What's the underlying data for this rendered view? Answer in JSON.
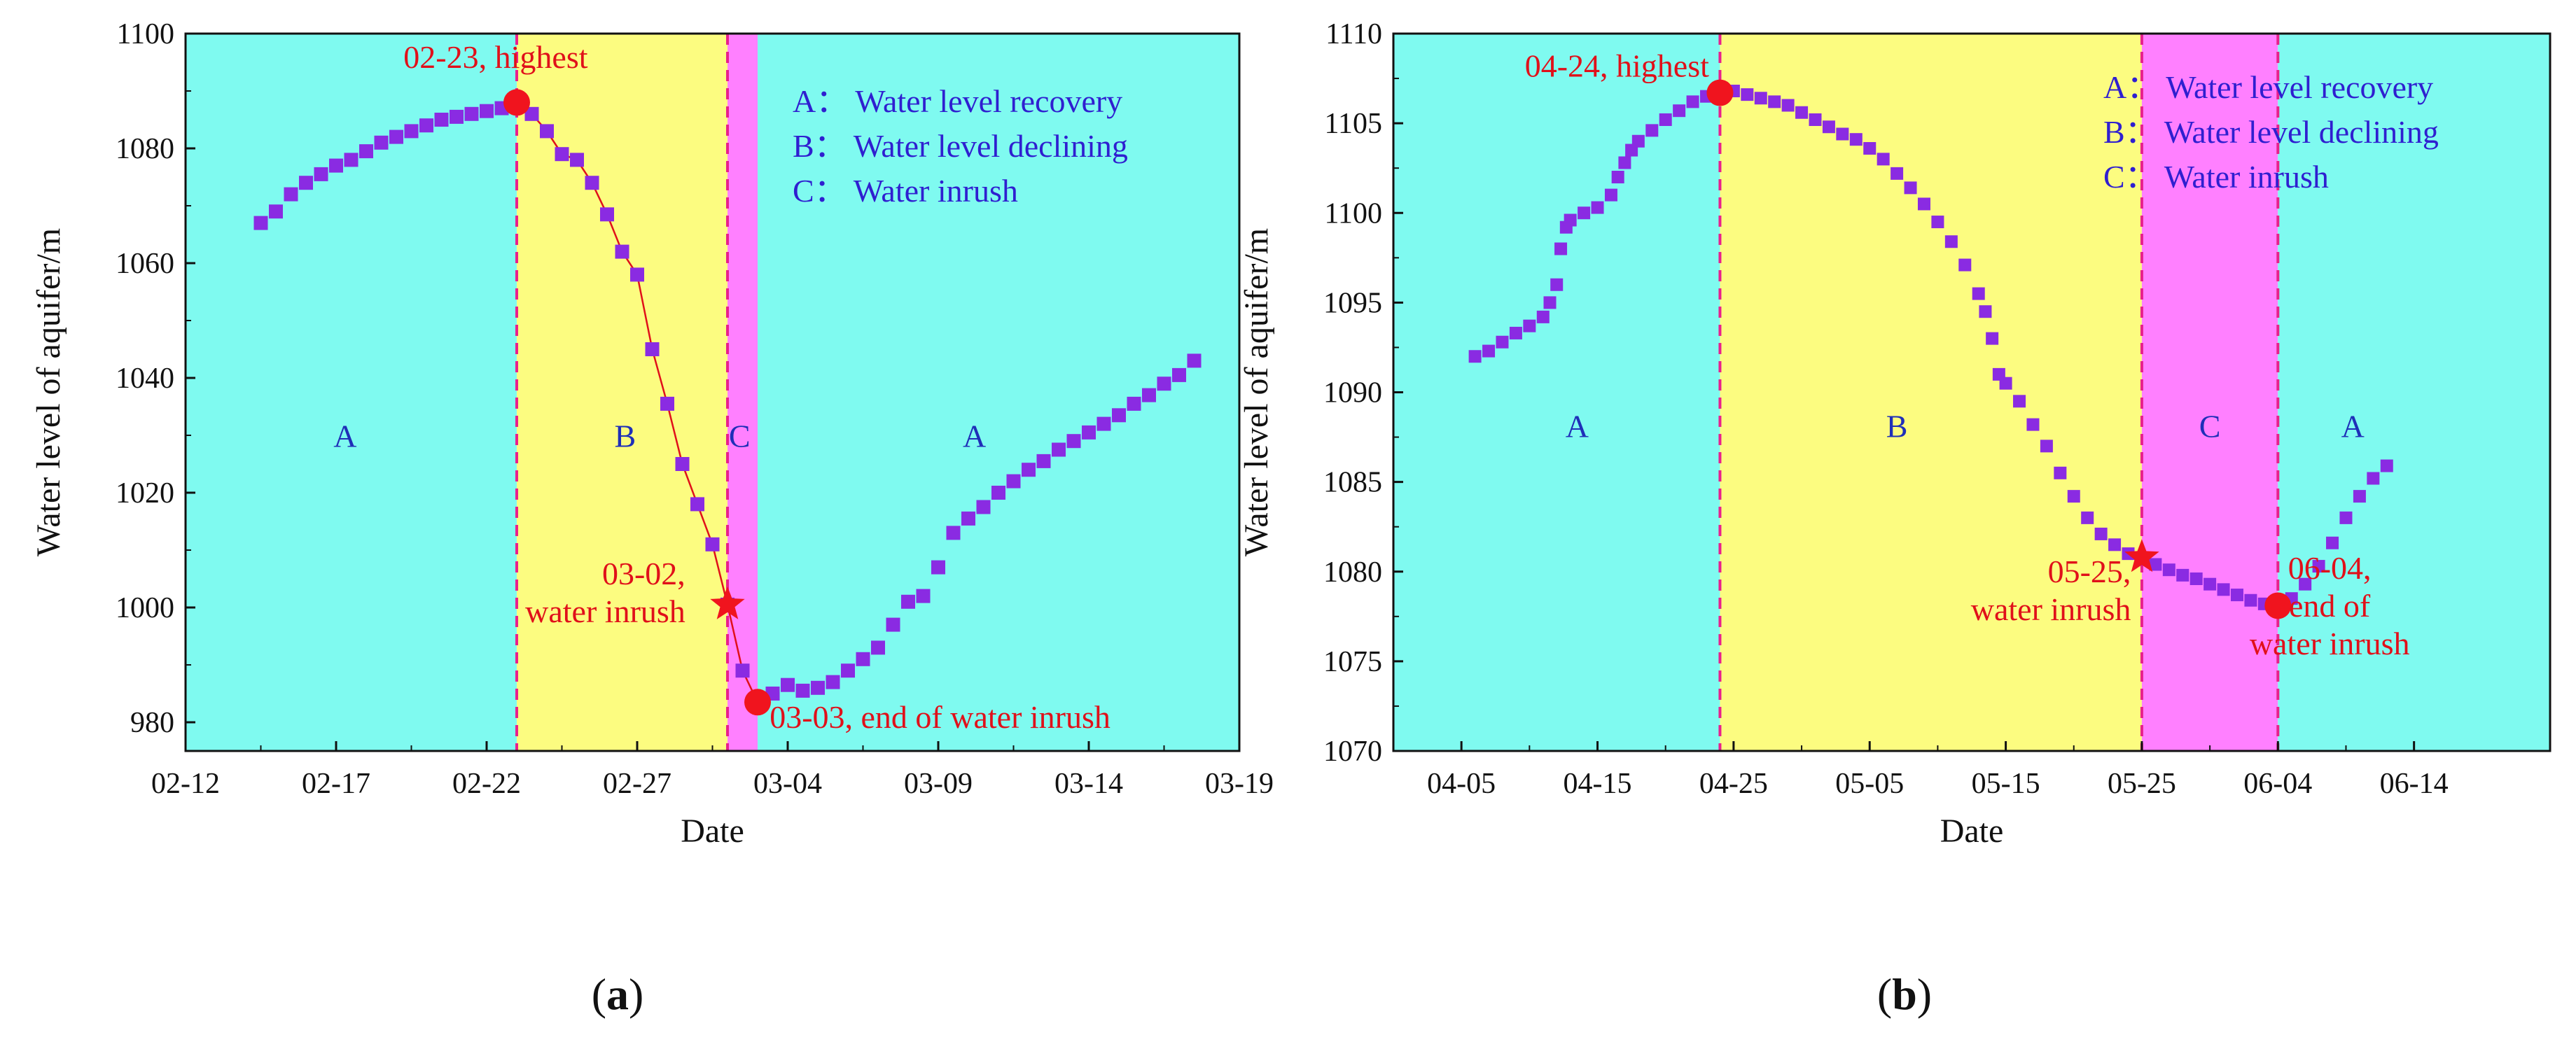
{
  "chart_data": [
    {
      "type": "scatter",
      "panel_label": {
        "open": "(",
        "letter": "a",
        "close": ")"
      },
      "xlabel": "Date",
      "ylabel": "Water level of aquifer/m",
      "xlim": [
        0,
        35
      ],
      "ylim": [
        975,
        1100
      ],
      "x_ticks": [
        {
          "pos": 0,
          "label": "02-12"
        },
        {
          "pos": 5,
          "label": "02-17"
        },
        {
          "pos": 10,
          "label": "02-22"
        },
        {
          "pos": 15,
          "label": "02-27"
        },
        {
          "pos": 20,
          "label": "03-04"
        },
        {
          "pos": 25,
          "label": "03-09"
        },
        {
          "pos": 30,
          "label": "03-14"
        },
        {
          "pos": 35,
          "label": "03-19"
        }
      ],
      "y_ticks": [
        {
          "pos": 980,
          "label": "980"
        },
        {
          "pos": 1000,
          "label": "1000"
        },
        {
          "pos": 1020,
          "label": "1020"
        },
        {
          "pos": 1040,
          "label": "1040"
        },
        {
          "pos": 1060,
          "label": "1060"
        },
        {
          "pos": 1080,
          "label": "1080"
        },
        {
          "pos": 1100,
          "label": "1100"
        }
      ],
      "regions": [
        {
          "label": "A",
          "from": 0,
          "to": 11,
          "color": "#7ffaf0",
          "label_x": 5.3,
          "label_y": 1028
        },
        {
          "label": "B",
          "from": 11,
          "to": 18,
          "color": "#fcfc80",
          "label_x": 14.6,
          "label_y": 1028
        },
        {
          "label": "C",
          "from": 18,
          "to": 19,
          "color": "#ff80ff",
          "label_x": 18.4,
          "label_y": 1028
        },
        {
          "label": "A",
          "from": 19,
          "to": 35,
          "color": "#7ffaf0",
          "label_x": 26.2,
          "label_y": 1028
        }
      ],
      "vlines": [
        11,
        18
      ],
      "legend": [
        {
          "key": "A：",
          "text": "Water level recovery"
        },
        {
          "key": "B：",
          "text": "Water level declining"
        },
        {
          "key": "C：",
          "text": "Water inrush"
        }
      ],
      "series_color": "#8a2be2",
      "line_color": "#e0101a",
      "series": [
        {
          "x": 2.5,
          "y": 1067
        },
        {
          "x": 3.0,
          "y": 1069
        },
        {
          "x": 3.5,
          "y": 1072
        },
        {
          "x": 4.0,
          "y": 1074
        },
        {
          "x": 4.5,
          "y": 1075.5
        },
        {
          "x": 5.0,
          "y": 1077
        },
        {
          "x": 5.5,
          "y": 1078
        },
        {
          "x": 6.0,
          "y": 1079.5
        },
        {
          "x": 6.5,
          "y": 1081
        },
        {
          "x": 7.0,
          "y": 1082
        },
        {
          "x": 7.5,
          "y": 1083
        },
        {
          "x": 8.0,
          "y": 1084
        },
        {
          "x": 8.5,
          "y": 1085
        },
        {
          "x": 9.0,
          "y": 1085.5
        },
        {
          "x": 9.5,
          "y": 1086
        },
        {
          "x": 10.0,
          "y": 1086.5
        },
        {
          "x": 10.5,
          "y": 1087
        },
        {
          "x": 11.0,
          "y": 1087.5
        },
        {
          "x": 11.5,
          "y": 1086
        },
        {
          "x": 12.0,
          "y": 1083
        },
        {
          "x": 12.5,
          "y": 1079
        },
        {
          "x": 13.0,
          "y": 1078
        },
        {
          "x": 13.5,
          "y": 1074
        },
        {
          "x": 14.0,
          "y": 1068.5
        },
        {
          "x": 14.5,
          "y": 1062
        },
        {
          "x": 15.0,
          "y": 1058
        },
        {
          "x": 15.5,
          "y": 1045
        },
        {
          "x": 16.0,
          "y": 1035.5
        },
        {
          "x": 16.5,
          "y": 1025
        },
        {
          "x": 17.0,
          "y": 1018
        },
        {
          "x": 17.5,
          "y": 1011
        },
        {
          "x": 18.0,
          "y": 1000.5
        },
        {
          "x": 18.5,
          "y": 989
        },
        {
          "x": 19.0,
          "y": 983.5
        },
        {
          "x": 19.5,
          "y": 985
        },
        {
          "x": 20.0,
          "y": 986.5
        },
        {
          "x": 20.5,
          "y": 985.5
        },
        {
          "x": 21.0,
          "y": 986
        },
        {
          "x": 21.5,
          "y": 987
        },
        {
          "x": 22.0,
          "y": 989
        },
        {
          "x": 22.5,
          "y": 991
        },
        {
          "x": 23.0,
          "y": 993
        },
        {
          "x": 23.5,
          "y": 997
        },
        {
          "x": 24.0,
          "y": 1001
        },
        {
          "x": 24.5,
          "y": 1002
        },
        {
          "x": 25.0,
          "y": 1007
        },
        {
          "x": 25.5,
          "y": 1013
        },
        {
          "x": 26.0,
          "y": 1015.5
        },
        {
          "x": 26.5,
          "y": 1017.5
        },
        {
          "x": 27.0,
          "y": 1020
        },
        {
          "x": 27.5,
          "y": 1022
        },
        {
          "x": 28.0,
          "y": 1024
        },
        {
          "x": 28.5,
          "y": 1025.5
        },
        {
          "x": 29.0,
          "y": 1027.5
        },
        {
          "x": 29.5,
          "y": 1029
        },
        {
          "x": 30.0,
          "y": 1030.5
        },
        {
          "x": 30.5,
          "y": 1032
        },
        {
          "x": 31.0,
          "y": 1033.5
        },
        {
          "x": 31.5,
          "y": 1035.5
        },
        {
          "x": 32.0,
          "y": 1037
        },
        {
          "x": 32.5,
          "y": 1039
        },
        {
          "x": 33.0,
          "y": 1040.5
        },
        {
          "x": 33.5,
          "y": 1043
        }
      ],
      "line_range": [
        11,
        19
      ],
      "markers": [
        {
          "shape": "circle",
          "x": 11.0,
          "y": 1088,
          "label": [
            "02-23, highest"
          ],
          "label_x": 10.3,
          "label_y": 1094,
          "anchor": "middle"
        },
        {
          "shape": "star",
          "x": 18.0,
          "y": 1000.5,
          "label": [
            "03-02,",
            "water inrush"
          ],
          "label_x": 16.6,
          "label_y": 1004,
          "anchor": "end"
        },
        {
          "shape": "circle",
          "x": 19.0,
          "y": 983.5,
          "label": [
            "03-03, end of water inrush"
          ],
          "label_x": 19.4,
          "label_y": 979,
          "anchor": "start"
        }
      ]
    },
    {
      "type": "scatter",
      "panel_label": {
        "open": "(",
        "letter": "b",
        "close": ")"
      },
      "xlabel": "Date",
      "ylabel": "Water level of aquifer/m",
      "xlim": [
        -10,
        75
      ],
      "ylim": [
        1070,
        1110
      ],
      "x_ticks": [
        {
          "pos": -5,
          "label": "04-05"
        },
        {
          "pos": 5,
          "label": "04-15"
        },
        {
          "pos": 15,
          "label": "04-25"
        },
        {
          "pos": 25,
          "label": "05-05"
        },
        {
          "pos": 35,
          "label": "05-15"
        },
        {
          "pos": 45,
          "label": "05-25"
        },
        {
          "pos": 55,
          "label": "06-04"
        },
        {
          "pos": 65,
          "label": "06-14"
        }
      ],
      "y_ticks": [
        {
          "pos": 1070,
          "label": "1070"
        },
        {
          "pos": 1075,
          "label": "1075"
        },
        {
          "pos": 1080,
          "label": "1080"
        },
        {
          "pos": 1085,
          "label": "1085"
        },
        {
          "pos": 1090,
          "label": "1090"
        },
        {
          "pos": 1095,
          "label": "1095"
        },
        {
          "pos": 1100,
          "label": "1100"
        },
        {
          "pos": 1105,
          "label": "1105"
        },
        {
          "pos": 1110,
          "label": "1110"
        }
      ],
      "regions": [
        {
          "label": "A",
          "from": -10,
          "to": 14,
          "color": "#7ffaf0",
          "label_x": 3.5,
          "label_y": 1087.5
        },
        {
          "label": "B",
          "from": 14,
          "to": 45,
          "color": "#fcfc80",
          "label_x": 27,
          "label_y": 1087.5
        },
        {
          "label": "C",
          "from": 45,
          "to": 55,
          "color": "#ff80ff",
          "label_x": 50,
          "label_y": 1087.5
        },
        {
          "label": "A",
          "from": 55,
          "to": 75,
          "color": "#7ffaf0",
          "label_x": 60.5,
          "label_y": 1087.5
        }
      ],
      "vlines": [
        14,
        45,
        55
      ],
      "legend": [
        {
          "key": "A：",
          "text": "Water level recovery"
        },
        {
          "key": "B：",
          "text": "Water level declining"
        },
        {
          "key": "C：",
          "text": "Water inrush"
        }
      ],
      "series_color": "#8a2be2",
      "line_color": "#e0101a",
      "series": [
        {
          "x": -4.0,
          "y": 1092
        },
        {
          "x": -3.0,
          "y": 1092.3
        },
        {
          "x": -2.0,
          "y": 1092.8
        },
        {
          "x": -1.0,
          "y": 1093.3
        },
        {
          "x": 0.0,
          "y": 1093.7
        },
        {
          "x": 1.0,
          "y": 1094.2
        },
        {
          "x": 1.5,
          "y": 1095
        },
        {
          "x": 2.0,
          "y": 1096
        },
        {
          "x": 2.3,
          "y": 1098
        },
        {
          "x": 2.7,
          "y": 1099.2
        },
        {
          "x": 3.0,
          "y": 1099.6
        },
        {
          "x": 4.0,
          "y": 1100
        },
        {
          "x": 5.0,
          "y": 1100.3
        },
        {
          "x": 6.0,
          "y": 1101
        },
        {
          "x": 6.5,
          "y": 1102
        },
        {
          "x": 7.0,
          "y": 1102.8
        },
        {
          "x": 7.5,
          "y": 1103.5
        },
        {
          "x": 8.0,
          "y": 1104
        },
        {
          "x": 9.0,
          "y": 1104.6
        },
        {
          "x": 10.0,
          "y": 1105.2
        },
        {
          "x": 11.0,
          "y": 1105.7
        },
        {
          "x": 12.0,
          "y": 1106.2
        },
        {
          "x": 13.0,
          "y": 1106.5
        },
        {
          "x": 14.0,
          "y": 1106.7
        },
        {
          "x": 15.0,
          "y": 1106.8
        },
        {
          "x": 16.0,
          "y": 1106.6
        },
        {
          "x": 17.0,
          "y": 1106.4
        },
        {
          "x": 18.0,
          "y": 1106.2
        },
        {
          "x": 19.0,
          "y": 1106
        },
        {
          "x": 20.0,
          "y": 1105.6
        },
        {
          "x": 21.0,
          "y": 1105.2
        },
        {
          "x": 22.0,
          "y": 1104.8
        },
        {
          "x": 23.0,
          "y": 1104.4
        },
        {
          "x": 24.0,
          "y": 1104.1
        },
        {
          "x": 25.0,
          "y": 1103.6
        },
        {
          "x": 26.0,
          "y": 1103
        },
        {
          "x": 27.0,
          "y": 1102.2
        },
        {
          "x": 28.0,
          "y": 1101.4
        },
        {
          "x": 29.0,
          "y": 1100.5
        },
        {
          "x": 30.0,
          "y": 1099.5
        },
        {
          "x": 31.0,
          "y": 1098.4
        },
        {
          "x": 32.0,
          "y": 1097.1
        },
        {
          "x": 33.0,
          "y": 1095.5
        },
        {
          "x": 33.5,
          "y": 1094.5
        },
        {
          "x": 34.0,
          "y": 1093
        },
        {
          "x": 34.5,
          "y": 1091
        },
        {
          "x": 35.0,
          "y": 1090.5
        },
        {
          "x": 36.0,
          "y": 1089.5
        },
        {
          "x": 37.0,
          "y": 1088.2
        },
        {
          "x": 38.0,
          "y": 1087
        },
        {
          "x": 39.0,
          "y": 1085.5
        },
        {
          "x": 40.0,
          "y": 1084.2
        },
        {
          "x": 41.0,
          "y": 1083
        },
        {
          "x": 42.0,
          "y": 1082.1
        },
        {
          "x": 43.0,
          "y": 1081.5
        },
        {
          "x": 44.0,
          "y": 1081
        },
        {
          "x": 45.0,
          "y": 1080.7
        },
        {
          "x": 46.0,
          "y": 1080.4
        },
        {
          "x": 47.0,
          "y": 1080.1
        },
        {
          "x": 48.0,
          "y": 1079.8
        },
        {
          "x": 49.0,
          "y": 1079.6
        },
        {
          "x": 50.0,
          "y": 1079.3
        },
        {
          "x": 51.0,
          "y": 1079
        },
        {
          "x": 52.0,
          "y": 1078.7
        },
        {
          "x": 53.0,
          "y": 1078.4
        },
        {
          "x": 54.0,
          "y": 1078.2
        },
        {
          "x": 55.0,
          "y": 1078.1
        },
        {
          "x": 56.0,
          "y": 1078.5
        },
        {
          "x": 57.0,
          "y": 1079.3
        },
        {
          "x": 58.0,
          "y": 1080.3
        },
        {
          "x": 59.0,
          "y": 1081.6
        },
        {
          "x": 60.0,
          "y": 1083
        },
        {
          "x": 61.0,
          "y": 1084.2
        },
        {
          "x": 62.0,
          "y": 1085.2
        },
        {
          "x": 63.0,
          "y": 1085.9
        }
      ],
      "line_range": null,
      "markers": [
        {
          "shape": "circle",
          "x": 14.0,
          "y": 1106.7,
          "label": [
            "04-24, highest"
          ],
          "label_x": 13.2,
          "label_y": 1107.6,
          "anchor": "end"
        },
        {
          "shape": "star",
          "x": 45.0,
          "y": 1080.8,
          "label": [
            "05-25,",
            "water inrush"
          ],
          "label_x": 44.2,
          "label_y": 1079.4,
          "anchor": "end"
        },
        {
          "shape": "circle",
          "x": 55.0,
          "y": 1078.1,
          "label": [
            "06-04,",
            "end of",
            "water inrush"
          ],
          "label_x": 58.8,
          "label_y": 1079.6,
          "anchor": "middle"
        }
      ]
    }
  ]
}
